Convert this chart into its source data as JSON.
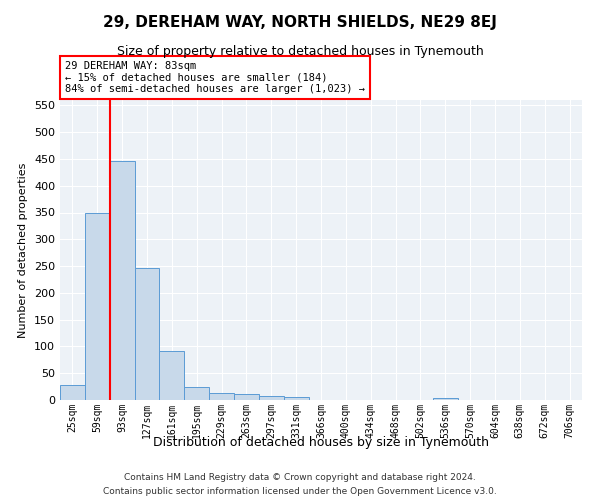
{
  "title": "29, DEREHAM WAY, NORTH SHIELDS, NE29 8EJ",
  "subtitle": "Size of property relative to detached houses in Tynemouth",
  "xlabel": "Distribution of detached houses by size in Tynemouth",
  "ylabel": "Number of detached properties",
  "bar_labels": [
    "25sqm",
    "59sqm",
    "93sqm",
    "127sqm",
    "161sqm",
    "195sqm",
    "229sqm",
    "263sqm",
    "297sqm",
    "331sqm",
    "366sqm",
    "400sqm",
    "434sqm",
    "468sqm",
    "502sqm",
    "536sqm",
    "570sqm",
    "604sqm",
    "638sqm",
    "672sqm",
    "706sqm"
  ],
  "bar_values": [
    28,
    350,
    447,
    247,
    92,
    25,
    14,
    11,
    8,
    6,
    0,
    0,
    0,
    0,
    0,
    4,
    0,
    0,
    0,
    0,
    0
  ],
  "bar_color": "#c8d9ea",
  "bar_edge_color": "#5b9bd5",
  "ylim": [
    0,
    560
  ],
  "yticks": [
    0,
    50,
    100,
    150,
    200,
    250,
    300,
    350,
    400,
    450,
    500,
    550
  ],
  "red_line_index": 2,
  "annotation_line1": "29 DEREHAM WAY: 83sqm",
  "annotation_line2": "← 15% of detached houses are smaller (184)",
  "annotation_line3": "84% of semi-detached houses are larger (1,023) →",
  "footer_line1": "Contains HM Land Registry data © Crown copyright and database right 2024.",
  "footer_line2": "Contains public sector information licensed under the Open Government Licence v3.0.",
  "grid_color": "#cccccc",
  "bg_color": "#edf2f7"
}
